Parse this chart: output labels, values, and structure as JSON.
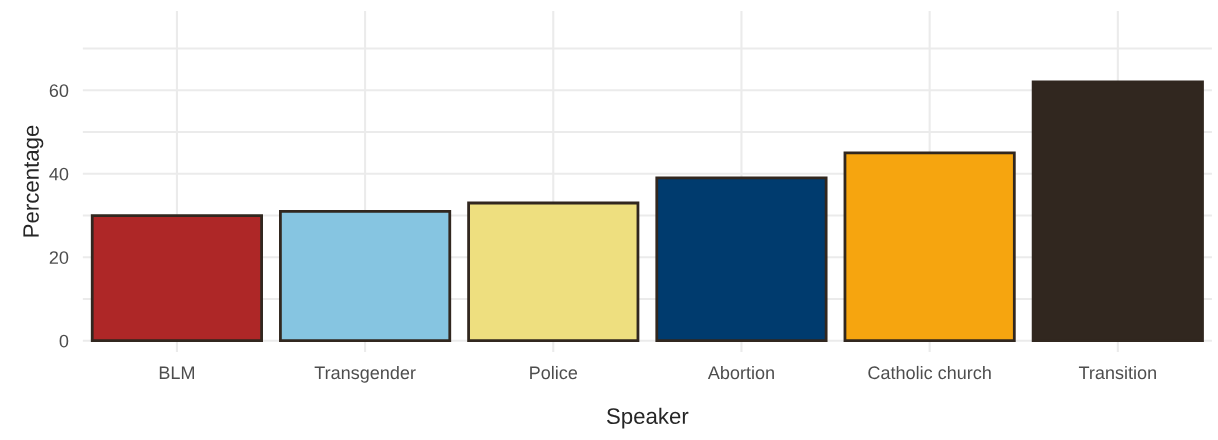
{
  "chart_data": {
    "type": "bar",
    "xlabel": "Speaker",
    "ylabel": "Percentage",
    "categories": [
      "BLM",
      "Transgender",
      "Police",
      "Abortion",
      "Catholic church",
      "Transition"
    ],
    "values": [
      30,
      31,
      33,
      39,
      45,
      62
    ],
    "colors": [
      "#ae2727",
      "#86c5e1",
      "#eedf7f",
      "#003b6e",
      "#f6a50f",
      "#31271f"
    ],
    "ylim": [
      -2.7,
      79
    ],
    "yticks": [
      0,
      {
        "value": 10,
        "label": null
      },
      20,
      {
        "value": 30,
        "label": null
      },
      40,
      {
        "value": 50,
        "label": null
      },
      60,
      {
        "value": 70,
        "label": null
      }
    ],
    "grid": true
  }
}
